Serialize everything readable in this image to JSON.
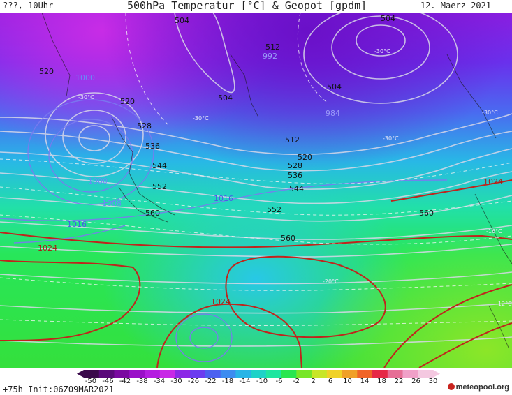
{
  "header": {
    "left": "???, 10Uhr",
    "title": "500hPa Temperatur [°C] & Geopot [gpdm]",
    "date": "12. Maerz 2021"
  },
  "footer": {
    "run": "+75h Init:06Z09MAR2021",
    "brand": "meteopool.org"
  },
  "colorbar": {
    "ticks": [
      "-50",
      "-46",
      "-42",
      "-38",
      "-34",
      "-30",
      "-26",
      "-22",
      "-18",
      "-14",
      "-10",
      "-6",
      "-2",
      "2",
      "6",
      "10",
      "14",
      "18",
      "22",
      "26",
      "30"
    ],
    "colors": [
      "#3a0a4a",
      "#5a0a7a",
      "#7a0aa0",
      "#9a10c8",
      "#b41ee0",
      "#c828e6",
      "#8c28e6",
      "#6c3cf0",
      "#4c60f0",
      "#3c8cf0",
      "#28b4e6",
      "#1ed2c8",
      "#1ee6a0",
      "#28e650",
      "#78e628",
      "#c8e628",
      "#f0d228",
      "#f0a028",
      "#f06428",
      "#e62846",
      "#e66e96",
      "#f0a0c8",
      "#f4c8e0"
    ]
  },
  "map_labels": {
    "geopot": [
      {
        "text": "504",
        "kind": "geo"
      },
      {
        "text": "512",
        "kind": "geo"
      },
      {
        "text": "504",
        "kind": "geo"
      },
      {
        "text": "504",
        "kind": "geo"
      },
      {
        "text": "504",
        "kind": "geo"
      },
      {
        "text": "520",
        "kind": "geo"
      },
      {
        "text": "520",
        "kind": "geo"
      },
      {
        "text": "528",
        "kind": "geo"
      },
      {
        "text": "536",
        "kind": "geo"
      },
      {
        "text": "544",
        "kind": "geo"
      },
      {
        "text": "552",
        "kind": "geo"
      },
      {
        "text": "560",
        "kind": "geo"
      },
      {
        "text": "512",
        "kind": "geo"
      },
      {
        "text": "520",
        "kind": "geo"
      },
      {
        "text": "528",
        "kind": "geo"
      },
      {
        "text": "536",
        "kind": "geo"
      },
      {
        "text": "544",
        "kind": "geo"
      },
      {
        "text": "552",
        "kind": "geo"
      },
      {
        "text": "560",
        "kind": "geo"
      },
      {
        "text": "560",
        "kind": "geo"
      }
    ],
    "pressure": [
      {
        "text": "992",
        "kind": "p"
      },
      {
        "text": "984",
        "kind": "p"
      },
      {
        "text": "1000",
        "kind": "p"
      },
      {
        "text": "1000",
        "kind": "p"
      },
      {
        "text": "1008",
        "kind": "p"
      },
      {
        "text": "1016",
        "kind": "p"
      },
      {
        "text": "1016",
        "kind": "p"
      },
      {
        "text": "1024",
        "kind": "hp"
      },
      {
        "text": "1024",
        "kind": "hp"
      },
      {
        "text": "1024",
        "kind": "hp"
      }
    ],
    "temps": [
      {
        "text": "-30°C"
      },
      {
        "text": "-30°C"
      },
      {
        "text": "-30°C"
      },
      {
        "text": "-30°C"
      },
      {
        "text": "-30°C"
      },
      {
        "text": "-16°C"
      },
      {
        "text": "-20°C"
      },
      {
        "text": "-12°C"
      }
    ]
  }
}
